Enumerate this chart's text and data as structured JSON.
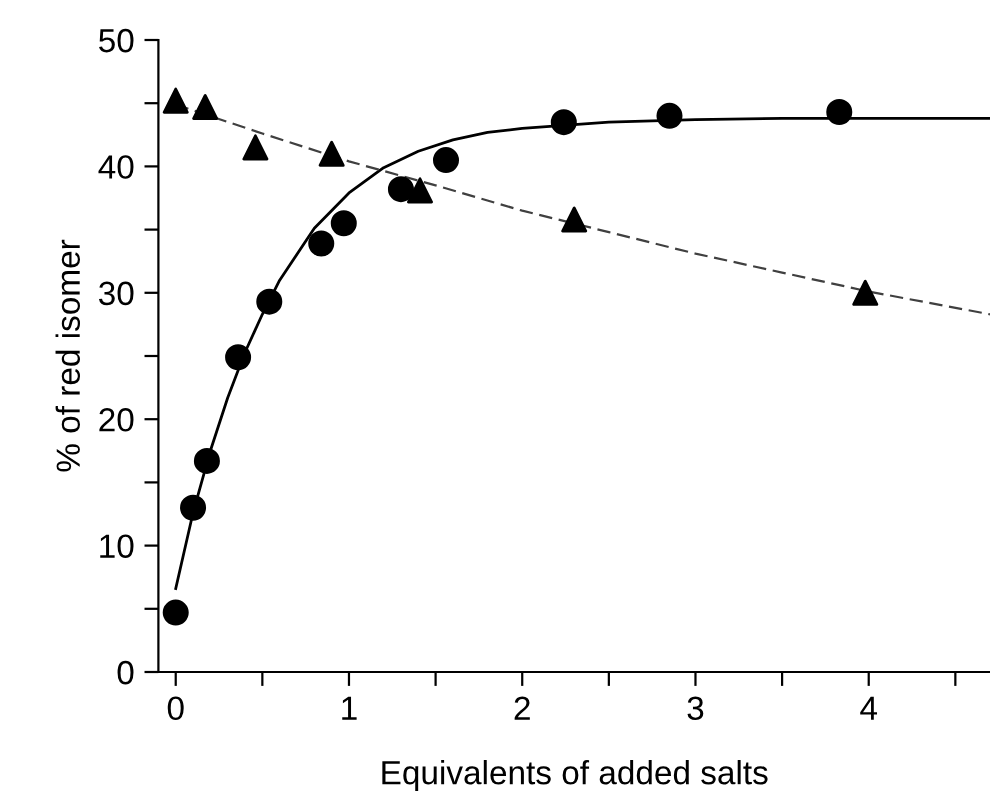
{
  "chart_data": {
    "type": "scatter",
    "xlabel": "Equivalents of added salts",
    "ylabel": "% of red isomer",
    "xlim": [
      -0.1,
      4.7
    ],
    "ylim": [
      0,
      50
    ],
    "xticks": [
      0,
      {
        "value": 0.5,
        "label": null
      },
      1,
      {
        "value": 1.5,
        "label": null
      },
      2,
      {
        "value": 2.5,
        "label": null
      },
      3,
      {
        "value": 3.5,
        "label": null
      },
      4,
      {
        "value": 4.5,
        "label": null
      }
    ],
    "yticks": [
      0,
      {
        "value": 5,
        "label": null
      },
      10,
      {
        "value": 15,
        "label": null
      },
      20,
      {
        "value": 25,
        "label": null
      },
      30,
      {
        "value": 35,
        "label": null
      },
      40,
      {
        "value": 45,
        "label": null
      },
      50
    ],
    "grid": false,
    "legend": false,
    "series": [
      {
        "marker": "circle",
        "color": "#000000",
        "x": [
          0,
          0.1,
          0.18,
          0.36,
          0.54,
          0.84,
          0.97,
          1.3,
          1.56,
          2.24,
          2.85,
          3.83
        ],
        "values": [
          4.7,
          13.0,
          16.7,
          24.9,
          29.3,
          33.9,
          35.5,
          38.2,
          40.5,
          43.5,
          44.0,
          44.3
        ]
      },
      {
        "marker": "triangle",
        "color": "#000000",
        "x": [
          0,
          0.17,
          0.46,
          0.9,
          1.41,
          2.3,
          3.98
        ],
        "values": [
          45.2,
          44.7,
          41.5,
          41.0,
          38.1,
          35.8,
          30.0
        ]
      },
      {
        "type": "line",
        "line_style": "solid",
        "color": "#000000",
        "x": [
          0,
          0.1,
          0.2,
          0.3,
          0.4,
          0.5,
          0.6,
          0.8,
          1.0,
          1.2,
          1.4,
          1.6,
          1.8,
          2.0,
          2.5,
          3,
          3.5,
          4,
          4.7
        ],
        "values": [
          6.6,
          12.6,
          17.5,
          21.7,
          25.3,
          28.3,
          31.0,
          35.1,
          37.9,
          39.9,
          41.2,
          42.1,
          42.7,
          43.0,
          43.5,
          43.7,
          43.8,
          43.8,
          43.8
        ]
      },
      {
        "type": "line",
        "line_style": "dashed",
        "color": "#404040",
        "x": [
          0,
          0.5,
          1,
          1.5,
          2,
          2.5,
          3,
          3.5,
          4,
          4.7
        ],
        "values": [
          44.9,
          42.6,
          40.4,
          38.5,
          36.5,
          34.8,
          33.1,
          31.6,
          30.1,
          28.3
        ]
      }
    ]
  }
}
